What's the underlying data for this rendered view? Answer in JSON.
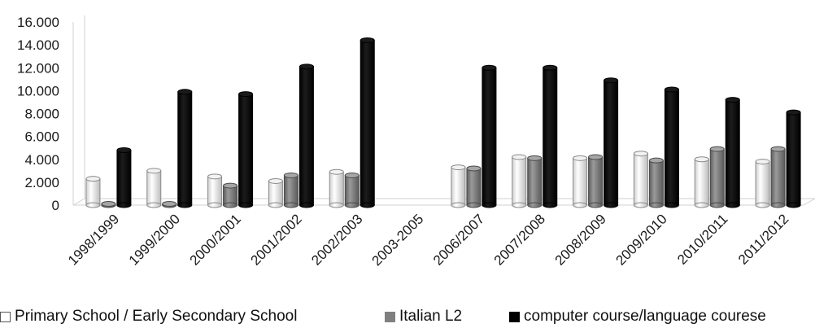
{
  "chart_data": {
    "type": "bar",
    "style": "3d-cylinder",
    "categories": [
      "1998/1999",
      "1999/2000",
      "2000/2001",
      "2001/2002",
      "2002/2003",
      "2003-2005",
      "2006/2007",
      "2007/2008",
      "2008/2009",
      "2009/2010",
      "2010/2011",
      "2011/2012"
    ],
    "series": [
      {
        "name": "Primary School / Early Secondary School",
        "color": "#ffffff",
        "values": [
          2300,
          3000,
          2500,
          2100,
          2900,
          null,
          3300,
          4200,
          4100,
          4500,
          4000,
          3800
        ]
      },
      {
        "name": "Italian L2",
        "color": "#808080",
        "values": [
          0,
          0,
          1700,
          2600,
          2600,
          null,
          3200,
          4100,
          4200,
          3900,
          4900,
          4900
        ]
      },
      {
        "name": "computer course/language courese",
        "color": "#000000",
        "values": [
          4800,
          9900,
          9700,
          12100,
          14400,
          null,
          12000,
          12000,
          10900,
          10100,
          9200,
          8100
        ]
      }
    ],
    "yticks": [
      "0",
      "2.000",
      "4.000",
      "6.000",
      "8.000",
      "10.000",
      "12.000",
      "14.000",
      "16.000"
    ],
    "ylim": [
      0,
      16000
    ],
    "grid": false,
    "legend": "bottom"
  }
}
